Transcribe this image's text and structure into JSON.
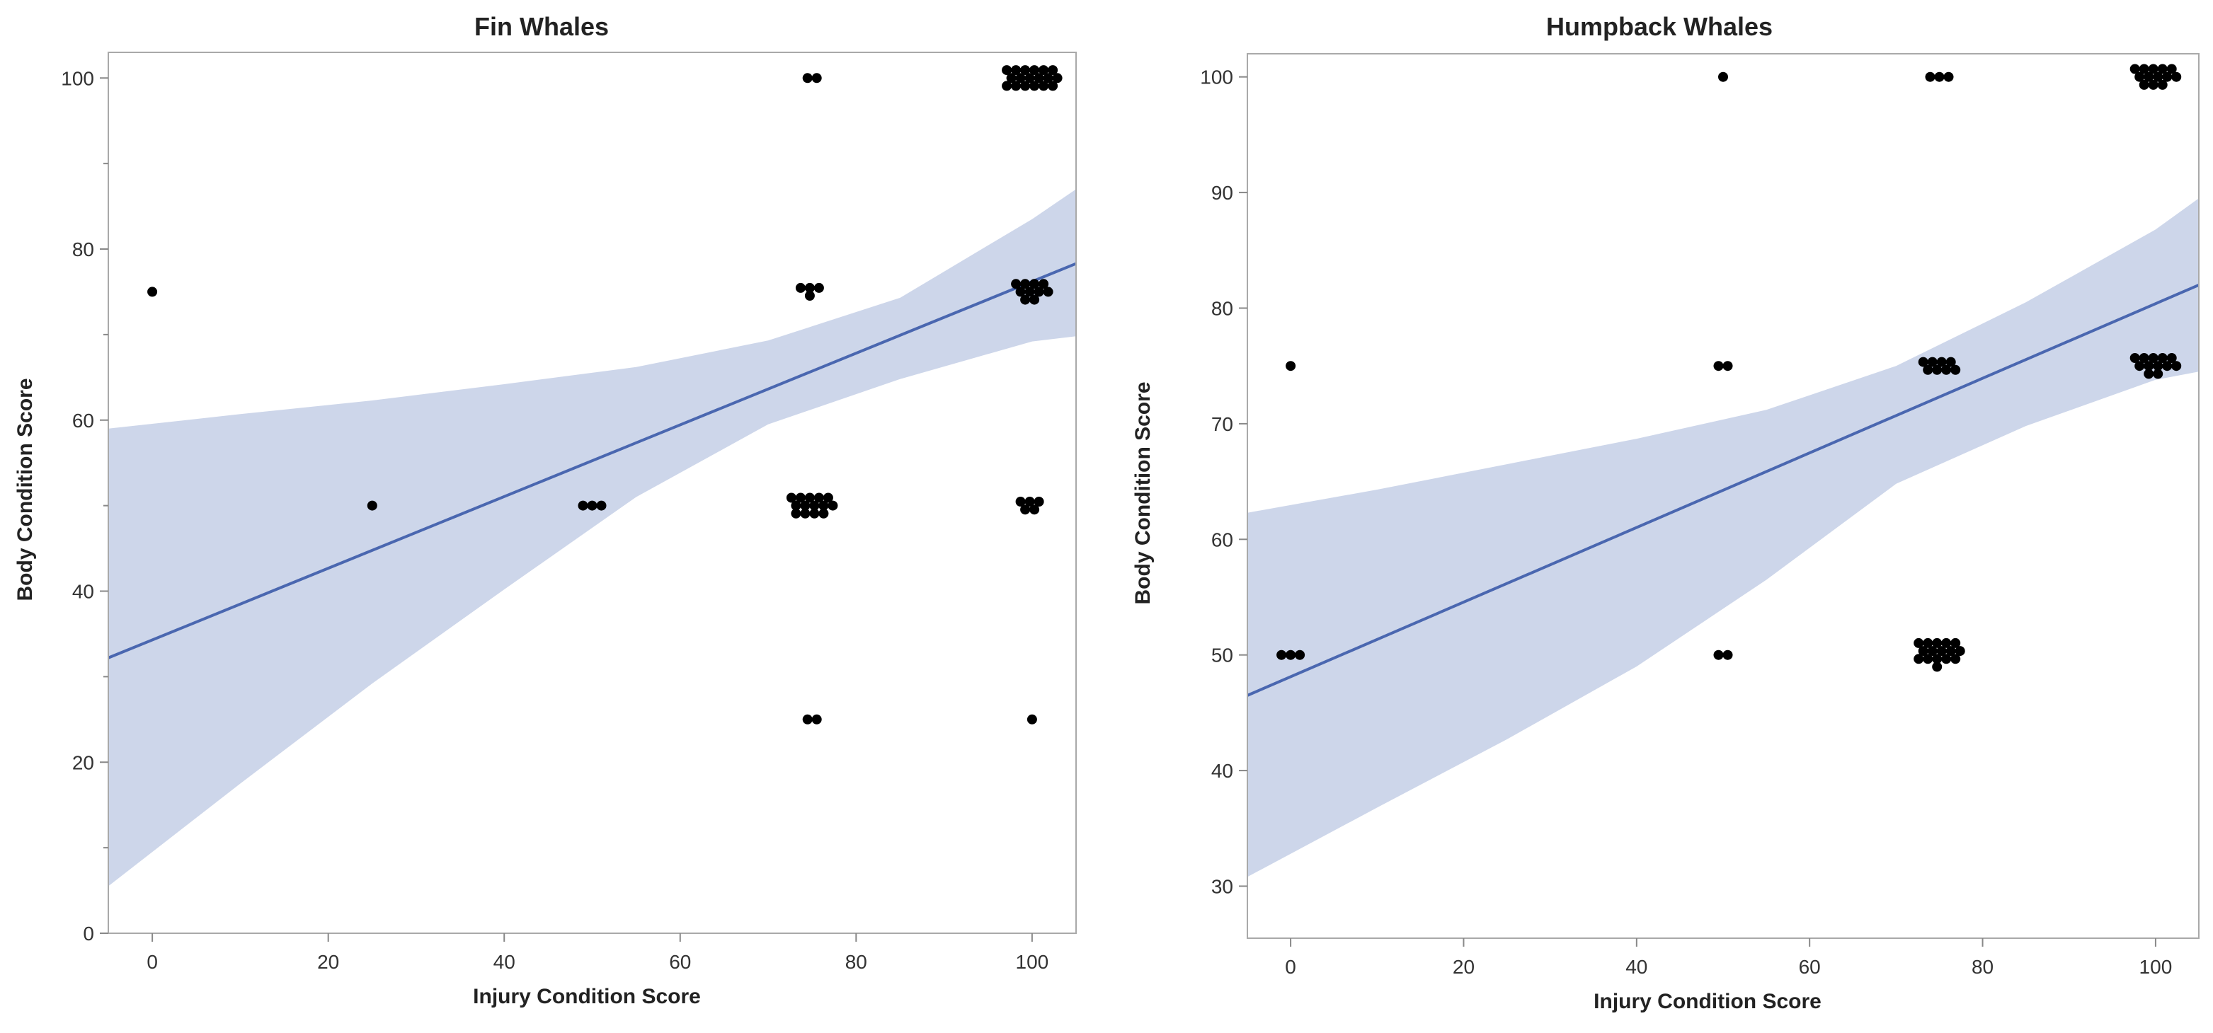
{
  "chart_data": [
    {
      "type": "scatter",
      "title": "Fin Whales",
      "xlabel": "Injury Condition Score",
      "ylabel": "Body Condition Score",
      "xlim": [
        -5,
        105
      ],
      "ylim": [
        0,
        103
      ],
      "xticks": [
        0,
        20,
        40,
        60,
        80,
        100
      ],
      "yticks": [
        0,
        20,
        40,
        60,
        80,
        100
      ],
      "yminor_ticks": [
        10,
        30,
        50,
        70,
        90
      ],
      "points": [
        {
          "x": 0,
          "y": 75,
          "n": 1
        },
        {
          "x": 25,
          "y": 50,
          "n": 1
        },
        {
          "x": 50,
          "y": 50,
          "n": 3
        },
        {
          "x": 75,
          "y": 25,
          "n": 2
        },
        {
          "x": 75,
          "y": 50,
          "n": 14
        },
        {
          "x": 75,
          "y": 75,
          "n": 4
        },
        {
          "x": 75,
          "y": 100,
          "n": 2
        },
        {
          "x": 100,
          "y": 25,
          "n": 1
        },
        {
          "x": 100,
          "y": 50,
          "n": 5
        },
        {
          "x": 100,
          "y": 75,
          "n": 10
        },
        {
          "x": 100,
          "y": 100,
          "n": 18
        }
      ],
      "fit": {
        "x": [
          -5,
          105
        ],
        "y": [
          32.2,
          78.3
        ]
      },
      "confidence_band": {
        "x": [
          -5,
          10,
          25,
          40,
          55,
          70,
          85,
          100,
          105
        ],
        "upper": [
          59,
          60.7,
          62.3,
          64.2,
          66.2,
          69.3,
          74.3,
          83.5,
          87
        ],
        "lower": [
          5.5,
          17.5,
          29.2,
          40.2,
          51,
          59.5,
          64.8,
          69.2,
          69.8
        ]
      },
      "colors": {
        "line": "#4a67b0",
        "band": "#cdd6ea",
        "points": "#000000"
      }
    },
    {
      "type": "scatter",
      "title": "Humpback Whales",
      "xlabel": "Injury Condition Score",
      "ylabel": "Body Condition Score",
      "xlim": [
        -5,
        105
      ],
      "ylim": [
        25.5,
        102
      ],
      "xticks": [
        0,
        20,
        40,
        60,
        80,
        100
      ],
      "yticks": [
        30,
        40,
        50,
        60,
        70,
        80,
        90,
        100
      ],
      "yminor_ticks": [],
      "points": [
        {
          "x": 0,
          "y": 50,
          "n": 3
        },
        {
          "x": 0,
          "y": 75,
          "n": 1
        },
        {
          "x": 50,
          "y": 50,
          "n": 2
        },
        {
          "x": 50,
          "y": 75,
          "n": 2
        },
        {
          "x": 50,
          "y": 100,
          "n": 1
        },
        {
          "x": 75,
          "y": 50,
          "n": 16
        },
        {
          "x": 75,
          "y": 75,
          "n": 8
        },
        {
          "x": 75,
          "y": 100,
          "n": 3
        },
        {
          "x": 100,
          "y": 75,
          "n": 12
        },
        {
          "x": 100,
          "y": 100,
          "n": 13
        }
      ],
      "fit": {
        "x": [
          -5,
          105
        ],
        "y": [
          46.5,
          82.0
        ]
      },
      "confidence_band": {
        "x": [
          -5,
          10,
          25,
          40,
          55,
          70,
          85,
          100,
          105
        ],
        "upper": [
          62.3,
          64.3,
          66.5,
          68.7,
          71.2,
          75,
          80.5,
          86.8,
          89.5
        ],
        "lower": [
          30.8,
          36.8,
          42.7,
          49,
          56.5,
          64.8,
          69.8,
          73.8,
          74.5
        ]
      },
      "colors": {
        "line": "#4a67b0",
        "band": "#cdd6ea",
        "points": "#000000"
      }
    }
  ]
}
